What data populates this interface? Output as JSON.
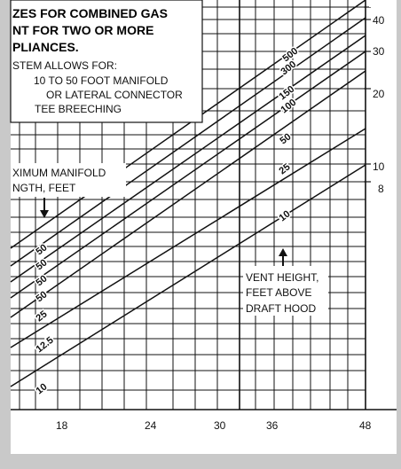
{
  "chart_data": {
    "type": "line",
    "title_lines": [
      "ZES FOR COMBINED GAS",
      "NT FOR TWO OR MORE",
      "PLIANCES."
    ],
    "note_lines": [
      "STEM ALLOWS FOR:",
      "10 TO 50 FOOT MANIFOLD",
      "OR LATERAL CONNECTOR",
      "TEE BREECHING"
    ],
    "left_label_lines": [
      "XIMUM MANIFOLD",
      "NGTH, FEET"
    ],
    "vent_label_lines": [
      "VENT HEIGHT,",
      "FEET ABOVE",
      "DRAFT HOOD"
    ],
    "xlabel": "",
    "x_ticks": [
      "18",
      "24",
      "30",
      "36",
      "48"
    ],
    "y_ticks": [
      "40",
      "30",
      "20",
      "10",
      "8"
    ],
    "vent_series_labels": [
      "500",
      "300",
      "150",
      "100",
      "50",
      "25",
      "10"
    ],
    "manifold_series_labels": [
      "50",
      "50",
      "50",
      "50",
      "25",
      "12.5",
      "10"
    ],
    "colors": {
      "paper": "#ffffff",
      "ink": "#111111",
      "margin": "#c9c9c9"
    }
  }
}
